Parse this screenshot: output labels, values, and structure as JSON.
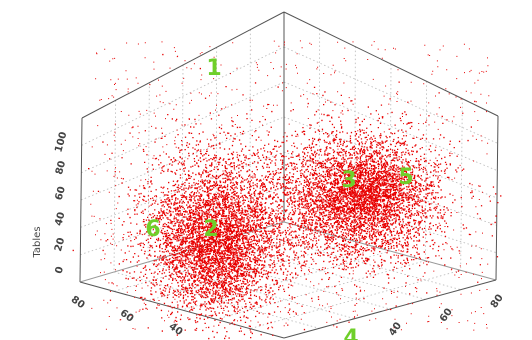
{
  "chart_data": {
    "type": "scatter",
    "dimensions": 3,
    "title": "",
    "zlabel": "Tables",
    "z_ticks": [
      "100",
      "80",
      "60",
      "40",
      "20",
      "0"
    ],
    "left_axis_ticks": [
      "80",
      "60",
      "40"
    ],
    "right_axis_ticks": [
      "80",
      "60",
      "40"
    ],
    "grid": true,
    "point_color": "#e80000",
    "label_color": "#6fcf2a",
    "clusters": [
      {
        "label": "1"
      },
      {
        "label": "2"
      },
      {
        "label": "3"
      },
      {
        "label": "4"
      },
      {
        "label": "5"
      },
      {
        "label": "6"
      }
    ]
  }
}
